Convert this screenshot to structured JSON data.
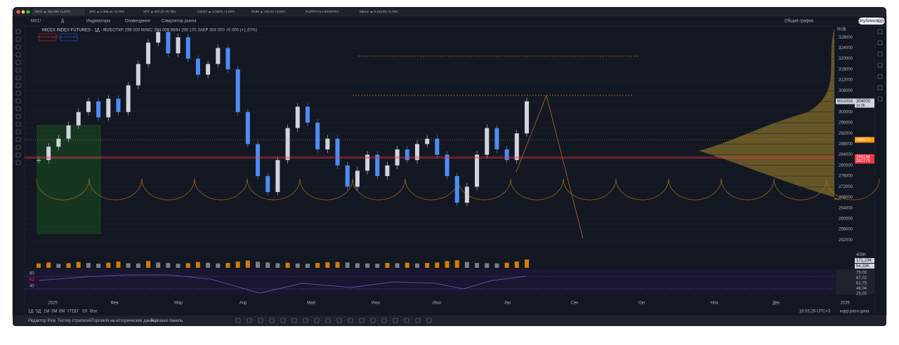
{
  "tabs": [
    "MX1! ▲ 304 000 +1,67%",
    "SPX ▲ 6 389,44 +0,78%",
    "SPY ▲ 637,18 +0,78%",
    "US02Y ▲ 3,762% +1,82%",
    "ROBI ▲ 120,24 +0,83%",
    "RURFFY 9,4 МАКРУКА",
    "MES1! ▲ 6 413,50 +0,78%"
  ],
  "toolbar": {
    "symbol": "MX1!",
    "interval": "Д",
    "indicators": "Индикаторы",
    "alerts": "Оповещения",
    "simulator": "Симулятор рынка",
    "layout": "Общий график",
    "publish": "Опубликовать"
  },
  "chart": {
    "title": "MICEX INDEX FUTURES · 1Д · RUS",
    "ohlc": "ОТКР 299 000 МАКС 304 000 МИН 298 170 ЗАКР 304 000 +5 000 (+1,67%)",
    "sell": "304 000 ПРОДАТЬ",
    "buy": "304 010 КУПИТЬ",
    "currency": "RUB",
    "up_color": "#d1d4dc",
    "down_color": "#4c8df6",
    "closes": [
      282000,
      287000,
      290000,
      295000,
      300000,
      304000,
      298000,
      305000,
      300000,
      310000,
      318000,
      326000,
      330000,
      322000,
      328000,
      320000,
      314000,
      318000,
      324000,
      316000,
      300000,
      288000,
      276000,
      270000,
      282000,
      294000,
      302000,
      296000,
      286000,
      290000,
      280000,
      272000,
      278000,
      284000,
      276000,
      280000,
      286000,
      282000,
      288000,
      290000,
      284000,
      276000,
      266000,
      272000,
      284000,
      294000,
      286000,
      282000,
      292000,
      304000
    ],
    "volumes": [
      90,
      110,
      80,
      95,
      120,
      100,
      85,
      105,
      130,
      95,
      90,
      140,
      110,
      100,
      85,
      95,
      120,
      105,
      90,
      100,
      130,
      150,
      125,
      110,
      95,
      105,
      90,
      85,
      100,
      115,
      120,
      110,
      95,
      90,
      85,
      100,
      95,
      105,
      90,
      100,
      110,
      140,
      155,
      120,
      100,
      95,
      90,
      105,
      130,
      171.23
    ],
    "vlim": [
      0,
      400
    ],
    "volume_labels": [
      "400K",
      "171,23K",
      "54,33K"
    ],
    "ylim": [
      250000,
      332000
    ],
    "yticks": [
      328000,
      324000,
      320000,
      316000,
      312000,
      308000,
      304000,
      300000,
      296000,
      292000,
      288000,
      284000,
      280000,
      276000,
      272000,
      268000,
      264000,
      260000,
      256000,
      252000
    ],
    "badges": [
      {
        "label": "MXU2025",
        "value": 304000,
        "note": "1d 3h"
      },
      {
        "value": 289570
      },
      {
        "value": 283134
      },
      {
        "value": 282776
      }
    ],
    "months": [
      "2025",
      "Фев",
      "Мар",
      "Апр",
      "Май",
      "Июн",
      "Июл",
      "Авг",
      "Сен",
      "Окт",
      "Ноя",
      "Дек",
      "2026"
    ],
    "rsi_left": [
      "80",
      "62",
      "40"
    ],
    "rsi_right": [
      "75,00",
      "67,02",
      "61,75",
      "46,04",
      "25,00"
    ]
  },
  "timeframes": [
    "1Д",
    "5Д",
    "1М",
    "3М",
    "6М",
    "YTD",
    "1Г",
    "5Л",
    "Все"
  ],
  "status": {
    "time": "16:55:26 UTC+3",
    "adj": "корр",
    "settle": "расч.цена"
  },
  "panels": [
    "Редактор Pine",
    "Тестер стратегий",
    "Торговля на исторических данных",
    "Торговая панель"
  ]
}
